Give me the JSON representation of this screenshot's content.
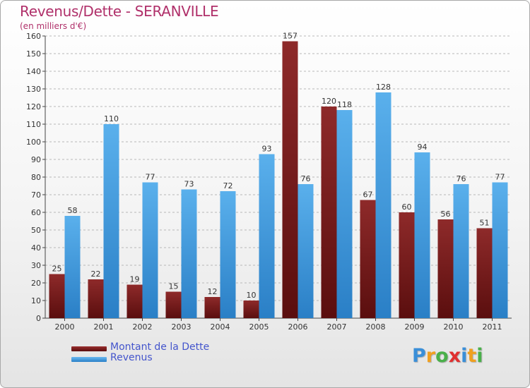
{
  "chart_data": {
    "type": "bar",
    "title": "Revenus/Dette - SERANVILLE",
    "subtitle": "(en milliers d'€)",
    "categories": [
      "2000",
      "2001",
      "2002",
      "2003",
      "2004",
      "2005",
      "2006",
      "2007",
      "2008",
      "2009",
      "2010",
      "2011"
    ],
    "series": [
      {
        "name": "Montant de la Dette",
        "color": "#7a1a1a",
        "values": [
          25,
          22,
          19,
          15,
          12,
          10,
          157,
          120,
          67,
          60,
          56,
          51
        ]
      },
      {
        "name": "Revenus",
        "color": "#3d9ee0",
        "values": [
          58,
          110,
          77,
          73,
          72,
          93,
          76,
          118,
          128,
          94,
          76,
          77
        ]
      }
    ],
    "ylim": [
      0,
      160
    ],
    "yticks": [
      0,
      10,
      20,
      30,
      40,
      50,
      60,
      70,
      80,
      90,
      100,
      110,
      120,
      130,
      140,
      150,
      160
    ],
    "grid": "horizontal-dashed",
    "legend": "bottom-left"
  },
  "logo": {
    "letters": [
      "P",
      "r",
      "o",
      "x",
      "i",
      "t",
      "i"
    ],
    "colors": [
      "#3a8fd8",
      "#f0a020",
      "#4ab04a",
      "#e03030",
      "#3a8fd8",
      "#f0a020",
      "#4ab04a"
    ]
  }
}
